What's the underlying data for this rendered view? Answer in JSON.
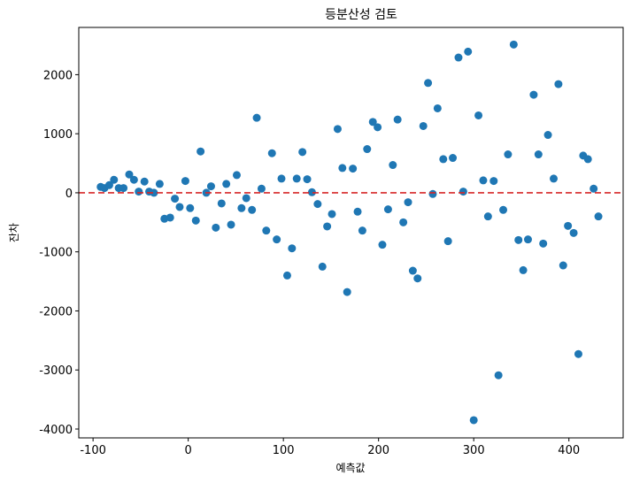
{
  "chart_data": {
    "type": "scatter",
    "title": "등분산성 검토",
    "xlabel": "예측값",
    "ylabel": "잔차",
    "xlim": [
      -115,
      457
    ],
    "ylim": [
      -4150,
      2800
    ],
    "xticks": [
      -100,
      0,
      100,
      200,
      300,
      400
    ],
    "yticks": [
      -4000,
      -3000,
      -2000,
      -1000,
      0,
      1000,
      2000
    ],
    "xtick_labels": [
      "-100",
      "0",
      "100",
      "200",
      "300",
      "400"
    ],
    "ytick_labels": [
      "-4000",
      "-3000",
      "-2000",
      "-1000",
      "0",
      "1000",
      "2000"
    ],
    "grid": false,
    "reference_line": {
      "y": 0,
      "style": "dashed",
      "color": "#d62728"
    },
    "marker_color": "#1f77b4",
    "points": [
      [
        -92,
        100
      ],
      [
        -88,
        80
      ],
      [
        -83,
        130
      ],
      [
        -78,
        220
      ],
      [
        -73,
        80
      ],
      [
        -68,
        80
      ],
      [
        -62,
        310
      ],
      [
        -57,
        220
      ],
      [
        -52,
        20
      ],
      [
        -46,
        190
      ],
      [
        -41,
        20
      ],
      [
        -36,
        0
      ],
      [
        -30,
        150
      ],
      [
        -25,
        -440
      ],
      [
        -19,
        -420
      ],
      [
        -14,
        -100
      ],
      [
        -9,
        -240
      ],
      [
        -3,
        200
      ],
      [
        2,
        -260
      ],
      [
        8,
        -470
      ],
      [
        13,
        700
      ],
      [
        19,
        0
      ],
      [
        24,
        110
      ],
      [
        29,
        -590
      ],
      [
        35,
        -180
      ],
      [
        40,
        150
      ],
      [
        45,
        -540
      ],
      [
        51,
        300
      ],
      [
        56,
        -260
      ],
      [
        61,
        -90
      ],
      [
        67,
        -290
      ],
      [
        72,
        1270
      ],
      [
        77,
        70
      ],
      [
        82,
        -640
      ],
      [
        88,
        670
      ],
      [
        93,
        -790
      ],
      [
        98,
        240
      ],
      [
        104,
        -1400
      ],
      [
        109,
        -940
      ],
      [
        114,
        240
      ],
      [
        120,
        690
      ],
      [
        125,
        230
      ],
      [
        130,
        10
      ],
      [
        136,
        -190
      ],
      [
        141,
        -1250
      ],
      [
        146,
        -570
      ],
      [
        151,
        -360
      ],
      [
        157,
        1080
      ],
      [
        162,
        420
      ],
      [
        167,
        -1680
      ],
      [
        173,
        410
      ],
      [
        178,
        -320
      ],
      [
        183,
        -640
      ],
      [
        188,
        740
      ],
      [
        194,
        1200
      ],
      [
        199,
        1110
      ],
      [
        204,
        -880
      ],
      [
        210,
        -280
      ],
      [
        215,
        470
      ],
      [
        220,
        1240
      ],
      [
        226,
        -500
      ],
      [
        231,
        -160
      ],
      [
        236,
        -1320
      ],
      [
        241,
        -1450
      ],
      [
        247,
        1130
      ],
      [
        252,
        1860
      ],
      [
        257,
        -20
      ],
      [
        262,
        1430
      ],
      [
        268,
        570
      ],
      [
        273,
        -820
      ],
      [
        278,
        590
      ],
      [
        284,
        2290
      ],
      [
        289,
        20
      ],
      [
        294,
        2390
      ],
      [
        300,
        -3850
      ],
      [
        305,
        1310
      ],
      [
        310,
        210
      ],
      [
        315,
        -400
      ],
      [
        321,
        200
      ],
      [
        326,
        -3090
      ],
      [
        331,
        -290
      ],
      [
        336,
        650
      ],
      [
        342,
        2510
      ],
      [
        347,
        -800
      ],
      [
        352,
        -1310
      ],
      [
        357,
        -790
      ],
      [
        363,
        1660
      ],
      [
        368,
        650
      ],
      [
        373,
        -860
      ],
      [
        378,
        980
      ],
      [
        384,
        240
      ],
      [
        389,
        1840
      ],
      [
        394,
        -1230
      ],
      [
        399,
        -560
      ],
      [
        405,
        -680
      ],
      [
        410,
        -2730
      ],
      [
        415,
        630
      ],
      [
        420,
        570
      ],
      [
        426,
        70
      ],
      [
        431,
        -400
      ]
    ]
  }
}
